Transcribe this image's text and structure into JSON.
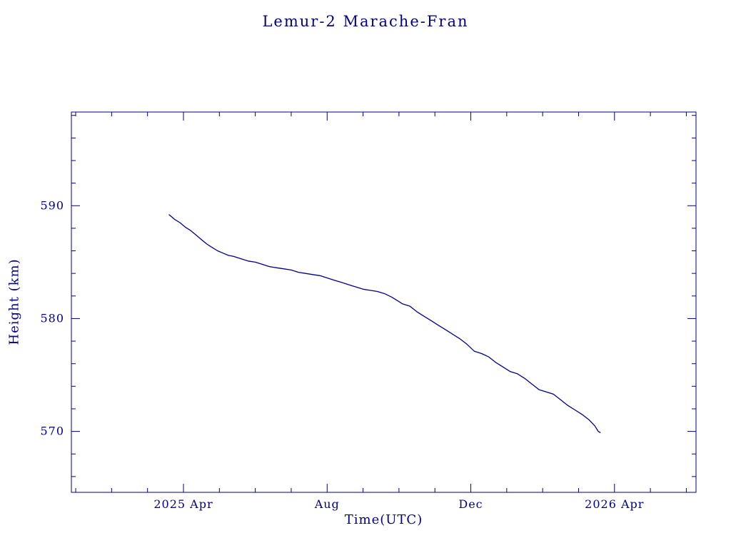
{
  "chart_data": {
    "type": "line",
    "title": "Lemur-2 Marache-Fran",
    "xlabel": "Time(UTC)",
    "ylabel": "Height (km)",
    "x_unit": "months since 2025-01-01",
    "xlim": [
      -0.12,
      17.27
    ],
    "ylim": [
      564.6,
      598.3
    ],
    "axis_color": "#000080",
    "line_color": "#00008B",
    "background": "#ffffff",
    "grid": false,
    "legend": "none",
    "x_major_ticks": [
      {
        "t": 3,
        "label": "2025 Apr"
      },
      {
        "t": 7,
        "label": "Aug"
      },
      {
        "t": 11,
        "label": "Dec"
      },
      {
        "t": 15,
        "label": "2026 Apr"
      }
    ],
    "x_minor_step": 1,
    "y_major_ticks": [
      570,
      580,
      590
    ],
    "y_minor_step": 2,
    "series_name": "Height (km)",
    "points": [
      [
        2.6,
        589.2
      ],
      [
        2.75,
        588.8
      ],
      [
        2.9,
        588.5
      ],
      [
        3.05,
        588.1
      ],
      [
        3.2,
        587.8
      ],
      [
        3.35,
        587.4
      ],
      [
        3.5,
        587.0
      ],
      [
        3.65,
        586.6
      ],
      [
        3.8,
        586.3
      ],
      [
        3.95,
        586.0
      ],
      [
        4.1,
        585.8
      ],
      [
        4.25,
        585.6
      ],
      [
        4.4,
        585.5
      ],
      [
        4.6,
        585.3
      ],
      [
        4.8,
        585.1
      ],
      [
        5.0,
        585.0
      ],
      [
        5.2,
        584.8
      ],
      [
        5.4,
        584.6
      ],
      [
        5.6,
        584.5
      ],
      [
        5.8,
        584.4
      ],
      [
        6.0,
        584.3
      ],
      [
        6.2,
        584.1
      ],
      [
        6.4,
        584.0
      ],
      [
        6.6,
        583.9
      ],
      [
        6.8,
        583.8
      ],
      [
        7.0,
        583.6
      ],
      [
        7.2,
        583.4
      ],
      [
        7.4,
        583.2
      ],
      [
        7.6,
        583.0
      ],
      [
        7.8,
        582.8
      ],
      [
        8.0,
        582.6
      ],
      [
        8.2,
        582.5
      ],
      [
        8.4,
        582.4
      ],
      [
        8.6,
        582.2
      ],
      [
        8.8,
        581.9
      ],
      [
        9.0,
        581.5
      ],
      [
        9.1,
        581.3
      ],
      [
        9.3,
        581.1
      ],
      [
        9.5,
        580.6
      ],
      [
        9.7,
        580.2
      ],
      [
        9.9,
        579.8
      ],
      [
        10.1,
        579.4
      ],
      [
        10.3,
        579.0
      ],
      [
        10.5,
        578.6
      ],
      [
        10.7,
        578.2
      ],
      [
        10.9,
        577.7
      ],
      [
        11.1,
        577.1
      ],
      [
        11.3,
        576.9
      ],
      [
        11.5,
        576.6
      ],
      [
        11.7,
        576.1
      ],
      [
        11.9,
        575.7
      ],
      [
        12.1,
        575.3
      ],
      [
        12.3,
        575.1
      ],
      [
        12.5,
        574.7
      ],
      [
        12.7,
        574.2
      ],
      [
        12.9,
        573.7
      ],
      [
        13.1,
        573.5
      ],
      [
        13.3,
        573.3
      ],
      [
        13.5,
        572.8
      ],
      [
        13.7,
        572.3
      ],
      [
        13.9,
        571.9
      ],
      [
        14.1,
        571.5
      ],
      [
        14.3,
        571.0
      ],
      [
        14.45,
        570.5
      ],
      [
        14.55,
        570.0
      ],
      [
        14.6,
        569.9
      ]
    ]
  }
}
